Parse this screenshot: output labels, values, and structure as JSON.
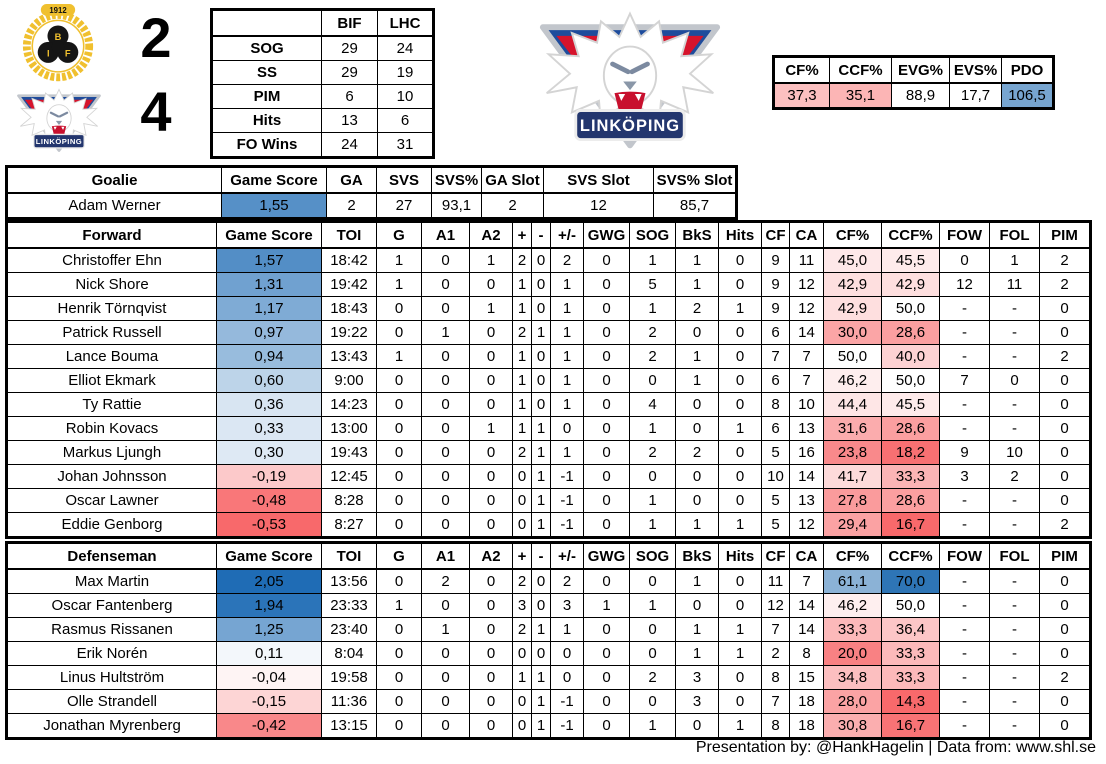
{
  "scoreboard": {
    "home_team": "BIF",
    "away_team": "LHC",
    "home_score": "2",
    "away_score": "4"
  },
  "logos": {
    "home_name": "Brynäs IF",
    "away_name": "Linköping HC",
    "home_year": "1912",
    "home_letters": [
      "B",
      "I",
      "F"
    ],
    "away_banner": "LINKÖPING"
  },
  "team_stats": {
    "col_headers": [
      "",
      "BIF",
      "LHC"
    ],
    "rows": [
      [
        "SOG",
        "29",
        "24"
      ],
      [
        "SS",
        "29",
        "19"
      ],
      [
        "PIM",
        "6",
        "10"
      ],
      [
        "Hits",
        "13",
        "6"
      ],
      [
        "FO Wins",
        "24",
        "31"
      ]
    ]
  },
  "advanced_stats": {
    "headers": [
      "CF%",
      "CCF%",
      "EVG%",
      "EVS%",
      "PDO"
    ],
    "values": [
      "37,3",
      "35,1",
      "88,9",
      "17,7",
      "106,5"
    ]
  },
  "goalie_table": {
    "headers": [
      "Goalie",
      "Game Score",
      "GA",
      "SVS",
      "SVS%",
      "GA Slot",
      "SVS Slot",
      "SVS% Slot"
    ],
    "rows": [
      [
        "Adam Werner",
        "1,55",
        "2",
        "27",
        "93,1",
        "2",
        "12",
        "85,7"
      ]
    ]
  },
  "forward_table": {
    "headers": [
      "Forward",
      "Game Score",
      "TOI",
      "G",
      "A1",
      "A2",
      "+",
      "-",
      "+/-",
      "GWG",
      "SOG",
      "BkS",
      "Hits",
      "CF",
      "CA",
      "CF%",
      "CCF%",
      "FOW",
      "FOL",
      "PIM"
    ],
    "rows": [
      [
        "Christoffer Ehn",
        "1,57",
        "18:42",
        "1",
        "0",
        "1",
        "2",
        "0",
        "2",
        "0",
        "1",
        "1",
        "0",
        "9",
        "11",
        "45,0",
        "45,5",
        "0",
        "1",
        "2"
      ],
      [
        "Nick Shore",
        "1,31",
        "19:42",
        "1",
        "0",
        "0",
        "1",
        "0",
        "1",
        "0",
        "5",
        "1",
        "0",
        "9",
        "12",
        "42,9",
        "42,9",
        "12",
        "11",
        "2"
      ],
      [
        "Henrik Törnqvist",
        "1,17",
        "18:43",
        "0",
        "0",
        "1",
        "1",
        "0",
        "1",
        "0",
        "1",
        "2",
        "1",
        "9",
        "12",
        "42,9",
        "50,0",
        "-",
        "-",
        "0"
      ],
      [
        "Patrick Russell",
        "0,97",
        "19:22",
        "0",
        "1",
        "0",
        "2",
        "1",
        "1",
        "0",
        "2",
        "0",
        "0",
        "6",
        "14",
        "30,0",
        "28,6",
        "-",
        "-",
        "0"
      ],
      [
        "Lance Bouma",
        "0,94",
        "13:43",
        "1",
        "0",
        "0",
        "1",
        "0",
        "1",
        "0",
        "2",
        "1",
        "0",
        "7",
        "7",
        "50,0",
        "40,0",
        "-",
        "-",
        "2"
      ],
      [
        "Elliot Ekmark",
        "0,60",
        "9:00",
        "0",
        "0",
        "0",
        "1",
        "0",
        "1",
        "0",
        "0",
        "1",
        "0",
        "6",
        "7",
        "46,2",
        "50,0",
        "7",
        "0",
        "0"
      ],
      [
        "Ty Rattie",
        "0,36",
        "14:23",
        "0",
        "0",
        "0",
        "1",
        "0",
        "1",
        "0",
        "4",
        "0",
        "0",
        "8",
        "10",
        "44,4",
        "45,5",
        "-",
        "-",
        "0"
      ],
      [
        "Robin Kovacs",
        "0,33",
        "13:00",
        "0",
        "0",
        "1",
        "1",
        "1",
        "0",
        "0",
        "1",
        "0",
        "1",
        "6",
        "13",
        "31,6",
        "28,6",
        "-",
        "-",
        "0"
      ],
      [
        "Markus Ljungh",
        "0,30",
        "19:43",
        "0",
        "0",
        "0",
        "2",
        "1",
        "1",
        "0",
        "2",
        "2",
        "0",
        "5",
        "16",
        "23,8",
        "18,2",
        "9",
        "10",
        "0"
      ],
      [
        "Johan Johnsson",
        "-0,19",
        "12:45",
        "0",
        "0",
        "0",
        "0",
        "1",
        "-1",
        "0",
        "0",
        "0",
        "0",
        "10",
        "14",
        "41,7",
        "33,3",
        "3",
        "2",
        "0"
      ],
      [
        "Oscar Lawner",
        "-0,48",
        "8:28",
        "0",
        "0",
        "0",
        "0",
        "1",
        "-1",
        "0",
        "1",
        "0",
        "0",
        "5",
        "13",
        "27,8",
        "28,6",
        "-",
        "-",
        "0"
      ],
      [
        "Eddie Genborg",
        "-0,53",
        "8:27",
        "0",
        "0",
        "0",
        "0",
        "1",
        "-1",
        "0",
        "1",
        "1",
        "1",
        "5",
        "12",
        "29,4",
        "16,7",
        "-",
        "-",
        "2"
      ]
    ]
  },
  "defenseman_table": {
    "headers": [
      "Defenseman",
      "Game Score",
      "TOI",
      "G",
      "A1",
      "A2",
      "+",
      "-",
      "+/-",
      "GWG",
      "SOG",
      "BkS",
      "Hits",
      "CF",
      "CA",
      "CF%",
      "CCF%",
      "FOW",
      "FOL",
      "PIM"
    ],
    "rows": [
      [
        "Max Martin",
        "2,05",
        "13:56",
        "0",
        "2",
        "0",
        "2",
        "0",
        "2",
        "0",
        "0",
        "1",
        "0",
        "11",
        "7",
        "61,1",
        "70,0",
        "-",
        "-",
        "0"
      ],
      [
        "Oscar Fantenberg",
        "1,94",
        "23:33",
        "1",
        "0",
        "0",
        "3",
        "0",
        "3",
        "1",
        "1",
        "0",
        "0",
        "12",
        "14",
        "46,2",
        "50,0",
        "-",
        "-",
        "0"
      ],
      [
        "Rasmus Rissanen",
        "1,25",
        "23:40",
        "0",
        "1",
        "0",
        "2",
        "1",
        "1",
        "0",
        "0",
        "1",
        "1",
        "7",
        "14",
        "33,3",
        "36,4",
        "-",
        "-",
        "0"
      ],
      [
        "Erik Norén",
        "0,11",
        "8:04",
        "0",
        "0",
        "0",
        "0",
        "0",
        "0",
        "0",
        "0",
        "1",
        "1",
        "2",
        "8",
        "20,0",
        "33,3",
        "-",
        "-",
        "0"
      ],
      [
        "Linus Hultström",
        "-0,04",
        "19:58",
        "0",
        "0",
        "0",
        "1",
        "1",
        "0",
        "0",
        "2",
        "3",
        "0",
        "8",
        "15",
        "34,8",
        "33,3",
        "-",
        "-",
        "2"
      ],
      [
        "Olle Strandell",
        "-0,15",
        "11:36",
        "0",
        "0",
        "0",
        "0",
        "1",
        "-1",
        "0",
        "0",
        "3",
        "0",
        "7",
        "18",
        "28,0",
        "14,3",
        "-",
        "-",
        "0"
      ],
      [
        "Jonathan Myrenberg",
        "-0,42",
        "13:15",
        "0",
        "0",
        "0",
        "0",
        "1",
        "-1",
        "0",
        "1",
        "0",
        "1",
        "8",
        "18",
        "30,8",
        "16,7",
        "-",
        "-",
        "0"
      ]
    ]
  },
  "footer": {
    "credit": "Presentation by: @HankHagelin | Data from: www.shl.se"
  },
  "colors": {
    "scale_positive_blue": "#1F6CB5",
    "scale_cf_blue": "#2E75B6",
    "scale_negative_red": "#F8696B",
    "brynas_yellow": "#F0C02F",
    "lhc_red": "#D6142C",
    "lhc_blue": "#1E4C9C",
    "lhc_banner_blue": "#23366E"
  }
}
